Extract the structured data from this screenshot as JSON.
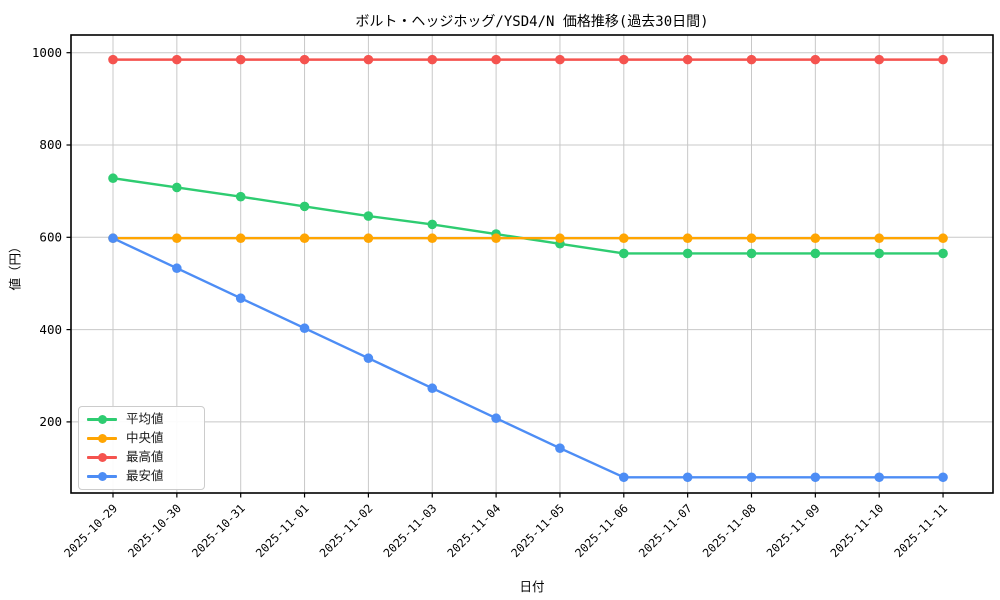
{
  "chart_data": {
    "type": "line",
    "title": "ボルト・ヘッジホッグ/YSD4/N 価格推移(過去30日間)",
    "xlabel": "日付",
    "ylabel": "値（円）",
    "categories": [
      "2025-10-29",
      "2025-10-30",
      "2025-10-31",
      "2025-11-01",
      "2025-11-02",
      "2025-11-03",
      "2025-11-04",
      "2025-11-05",
      "2025-11-06",
      "2025-11-07",
      "2025-11-08",
      "2025-11-09",
      "2025-11-10",
      "2025-11-11"
    ],
    "series": [
      {
        "key": "average",
        "name": "平均値",
        "color": "#2ecc71",
        "values": [
          728,
          708,
          688,
          667,
          646,
          628,
          607,
          586,
          565,
          565,
          565,
          565,
          565,
          565
        ]
      },
      {
        "key": "median",
        "name": "中央値",
        "color": "#ffa502",
        "values": [
          598,
          598,
          598,
          598,
          598,
          598,
          598,
          598,
          598,
          598,
          598,
          598,
          598,
          598
        ]
      },
      {
        "key": "max",
        "name": "最高値",
        "color": "#f5534f",
        "values": [
          985,
          985,
          985,
          985,
          985,
          985,
          985,
          985,
          985,
          985,
          985,
          985,
          985,
          985
        ]
      },
      {
        "key": "min",
        "name": "最安値",
        "color": "#4d8df5",
        "values": [
          598,
          533,
          468,
          403,
          338,
          273,
          208,
          143,
          80,
          80,
          80,
          80,
          80,
          80
        ]
      }
    ],
    "yticks": [
      200,
      400,
      600,
      800,
      1000
    ],
    "ylim": [
      46,
      1038
    ],
    "grid": true,
    "legend_position": "lower left",
    "style": {
      "grid_color": "#c8c8c8",
      "spine_color": "#000000",
      "tick_label_color": "#000000",
      "background": "#ffffff"
    }
  }
}
